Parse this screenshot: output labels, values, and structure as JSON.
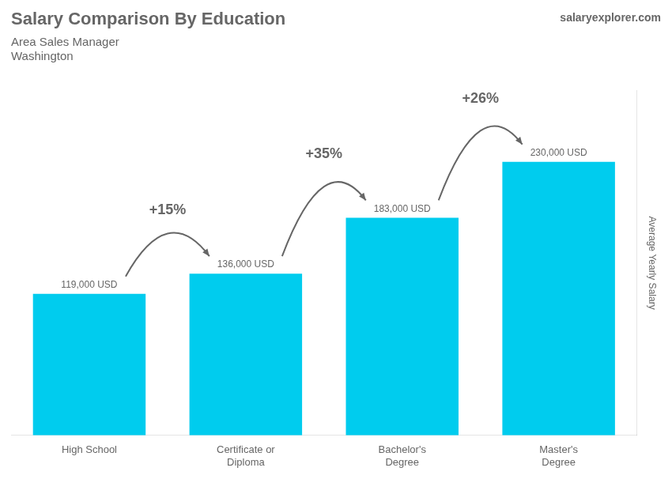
{
  "chart_data": {
    "type": "bar",
    "title": "Salary Comparison By Education",
    "subtitle": [
      "Area Sales Manager",
      "Washington"
    ],
    "watermark": "salaryexplorer.com",
    "ylabel": "Average Yearly Salary",
    "categories": [
      "High School",
      "Certificate or\nDiploma",
      "Bachelor's\nDegree",
      "Master's\nDegree"
    ],
    "values": [
      119000,
      136000,
      183000,
      230000
    ],
    "value_labels": [
      "119,000 USD",
      "136,000 USD",
      "183,000 USD",
      "230,000 USD"
    ],
    "data_labels": true,
    "annotations": [
      "+15%",
      "+35%",
      "+26%"
    ],
    "color": "#00ccee",
    "ylim": [
      0,
      290000
    ],
    "yticks": [],
    "grid": false,
    "tick_labels": "x"
  }
}
